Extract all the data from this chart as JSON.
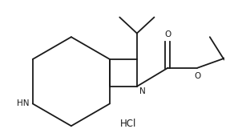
{
  "bg_color": "#ffffff",
  "line_color": "#1a1a1a",
  "text_color": "#1a1a1a",
  "hcl_label": "HCl",
  "nh_label": "HN",
  "n_label": "N",
  "o_label": "O",
  "o2_label": "O",
  "lw": 1.3,
  "fontsize": 7.5,
  "hcl_fontsize": 8.5
}
